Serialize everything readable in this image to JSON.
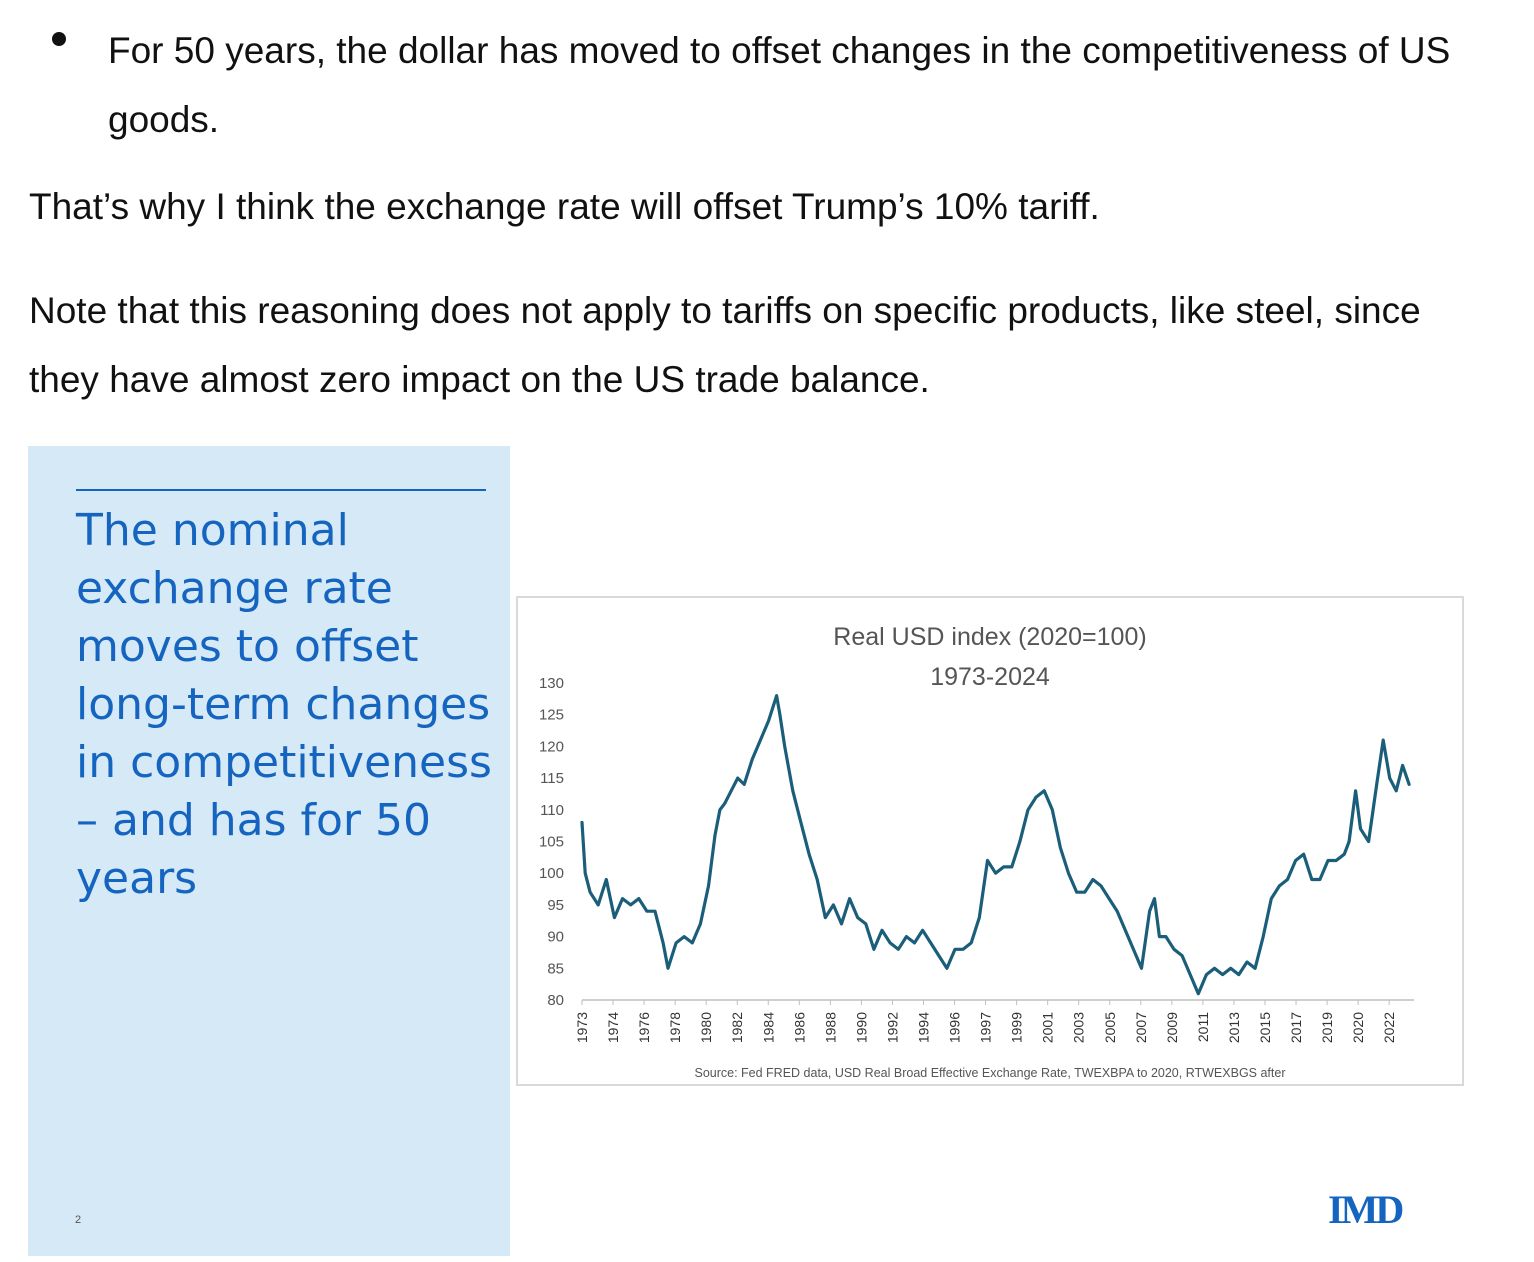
{
  "text": {
    "bullet": "For 50 years, the dollar has moved to offset changes in the competitiveness of US goods.",
    "para1": "That’s why I think the exchange rate will offset Trump’s 10% tariff.",
    "para2": "Note that this reasoning does not apply to tariffs on specific products, like steel, since they have almost zero impact on the US trade balance."
  },
  "slide": {
    "title": "The nominal exchange rate moves to offset long-term changes in competitiveness – and has for 50 years",
    "page_number": "2",
    "logo_text": "IMD"
  },
  "colors": {
    "panel_bg": "#d6e9f6",
    "accent": "#1565c0",
    "series": "#1b5e7a"
  },
  "chart_data": {
    "type": "line",
    "title": "Real USD index (2020=100)",
    "subtitle": "1973-2024",
    "xlabel": "",
    "ylabel": "",
    "source": "Source: Fed FRED data, USD Real Broad Effective Exchange Rate, TWEXBPA to 2020, RTWEXBGS after",
    "ylim": [
      80,
      130
    ],
    "yticks": [
      "80",
      "85",
      "90",
      "95",
      "100",
      "105",
      "110",
      "115",
      "120",
      "125",
      "130"
    ],
    "xticks": [
      "1973",
      "1974",
      "1976",
      "1978",
      "1980",
      "1982",
      "1984",
      "1986",
      "1988",
      "1990",
      "1992",
      "1994",
      "1996",
      "1997",
      "1999",
      "2001",
      "2003",
      "2005",
      "2007",
      "2009",
      "2011",
      "2013",
      "2015",
      "2017",
      "2019",
      "2020",
      "2022"
    ],
    "grid": false,
    "legend": "none",
    "series": [
      {
        "x": [
          1973.0,
          1973.2,
          1973.5,
          1974.0,
          1974.5,
          1975.0,
          1975.5,
          1976.0,
          1976.5,
          1977.0,
          1977.5,
          1978.0,
          1978.3,
          1978.8,
          1979.3,
          1979.8,
          1980.3,
          1980.8,
          1981.2,
          1981.5,
          1981.8,
          1982.2,
          1982.6,
          1983.0,
          1983.5,
          1984.0,
          1984.5,
          1985.0,
          1985.2,
          1985.5,
          1986.0,
          1986.5,
          1987.0,
          1987.5,
          1988.0,
          1988.5,
          1989.0,
          1989.5,
          1990.0,
          1990.5,
          1991.0,
          1991.5,
          1992.0,
          1992.5,
          1993.0,
          1993.5,
          1994.0,
          1994.5,
          1995.0,
          1995.5,
          1996.0,
          1996.5,
          1997.0,
          1997.5,
          1998.0,
          1998.5,
          1999.0,
          1999.5,
          2000.0,
          2000.5,
          2001.0,
          2001.5,
          2002.0,
          2002.5,
          2003.0,
          2003.5,
          2004.0,
          2004.5,
          2005.0,
          2005.5,
          2006.0,
          2006.5,
          2007.0,
          2007.5,
          2008.0,
          2008.3,
          2008.6,
          2009.0,
          2009.5,
          2010.0,
          2010.5,
          2011.0,
          2011.5,
          2012.0,
          2012.5,
          2013.0,
          2013.5,
          2014.0,
          2014.5,
          2015.0,
          2015.5,
          2016.0,
          2016.5,
          2017.0,
          2017.5,
          2018.0,
          2018.5,
          2019.0,
          2019.5,
          2020.0,
          2020.3,
          2020.7,
          2021.0,
          2021.5,
          2022.0,
          2022.4,
          2022.8,
          2023.2,
          2023.6,
          2024.0
        ],
        "values": [
          108,
          100,
          97,
          95,
          99,
          93,
          96,
          95,
          96,
          94,
          94,
          89,
          85,
          89,
          90,
          89,
          92,
          98,
          106,
          110,
          111,
          113,
          115,
          114,
          118,
          121,
          124,
          128,
          125,
          120,
          113,
          108,
          103,
          99,
          93,
          95,
          92,
          96,
          93,
          92,
          88,
          91,
          89,
          88,
          90,
          89,
          91,
          89,
          87,
          85,
          88,
          88,
          89,
          93,
          102,
          100,
          101,
          101,
          105,
          110,
          112,
          113,
          110,
          104,
          100,
          97,
          97,
          99,
          98,
          96,
          94,
          91,
          88,
          85,
          94,
          96,
          90,
          90,
          88,
          87,
          84,
          81,
          84,
          85,
          84,
          85,
          84,
          86,
          85,
          90,
          96,
          98,
          99,
          102,
          103,
          99,
          99,
          102,
          102,
          103,
          105,
          113,
          107,
          105,
          114,
          121,
          115,
          113,
          117,
          114
        ]
      }
    ]
  }
}
